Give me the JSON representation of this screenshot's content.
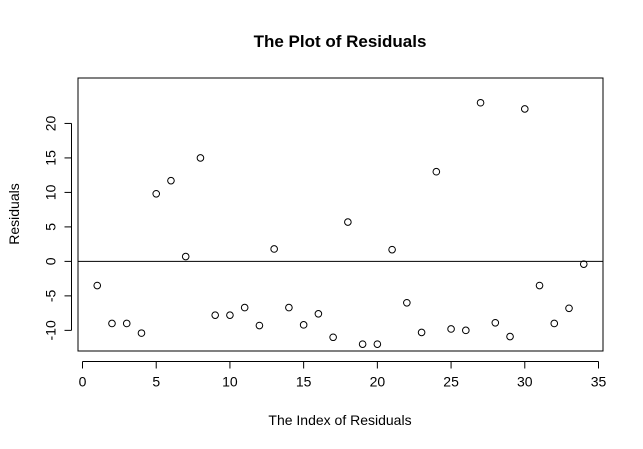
{
  "chart_data": {
    "type": "scatter",
    "title": "The Plot of Residuals",
    "xlabel": "The Index of Residuals",
    "ylabel": "Residuals",
    "xlim": [
      0,
      35
    ],
    "ylim": [
      -13.5,
      25.5
    ],
    "x_ticks": [
      0,
      5,
      10,
      15,
      20,
      25,
      30,
      35
    ],
    "x_tick_labels": [
      "0",
      "5",
      "10",
      "15",
      "20",
      "25",
      "30",
      "35"
    ],
    "y_ticks": [
      -10,
      -5,
      0,
      5,
      10,
      15,
      20
    ],
    "y_tick_labels": [
      "-10",
      "-5",
      "0",
      "5",
      "10",
      "15",
      "20"
    ],
    "reference_line": 0,
    "grid": false,
    "marker": "open-circle",
    "series": [
      {
        "x": [
          1,
          2,
          3,
          4,
          5,
          6,
          7,
          8,
          9,
          10,
          11,
          12,
          13,
          14,
          15,
          16,
          17,
          18,
          19,
          20,
          21,
          22,
          23,
          24,
          25,
          26,
          27,
          28,
          29,
          30,
          31,
          32,
          33,
          34
        ],
        "y": [
          -3.5,
          -9.0,
          -9.0,
          -10.4,
          9.8,
          11.7,
          0.7,
          15.0,
          -7.8,
          -7.8,
          -6.7,
          -9.3,
          1.8,
          -6.7,
          -9.2,
          -7.6,
          -11.0,
          5.7,
          -12.0,
          -12.0,
          1.7,
          -6.0,
          -10.3,
          13.0,
          -9.8,
          -10.0,
          23.0,
          -8.9,
          -10.9,
          22.1,
          -3.5,
          -9.0,
          -6.8,
          -0.4
        ]
      }
    ]
  }
}
